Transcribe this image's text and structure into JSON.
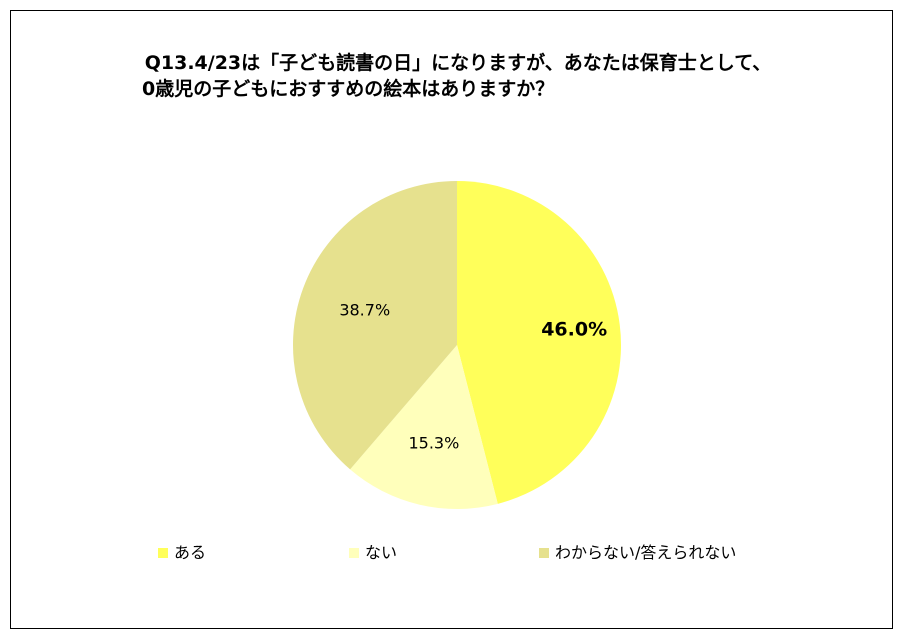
{
  "title": {
    "line1": "Q13.4/23は「子ども読書の日」になりますが、あなたは保育士として、",
    "line2": "0歳児の子どもにおすすめの絵本はありますか？"
  },
  "chart_data": {
    "type": "pie",
    "start_angle_deg": 0,
    "direction": "clockwise",
    "slices": [
      {
        "label": "ある",
        "value": 46.0,
        "display": "46.0%",
        "color": "#ffff5a",
        "label_bold": true
      },
      {
        "label": "ない",
        "value": 15.3,
        "display": "15.3%",
        "color": "#ffffbb",
        "label_bold": false
      },
      {
        "label": "わからない/答えられない",
        "value": 38.7,
        "display": "38.7%",
        "color": "#e6e18e",
        "label_bold": false
      }
    ],
    "legend_position": "bottom"
  }
}
